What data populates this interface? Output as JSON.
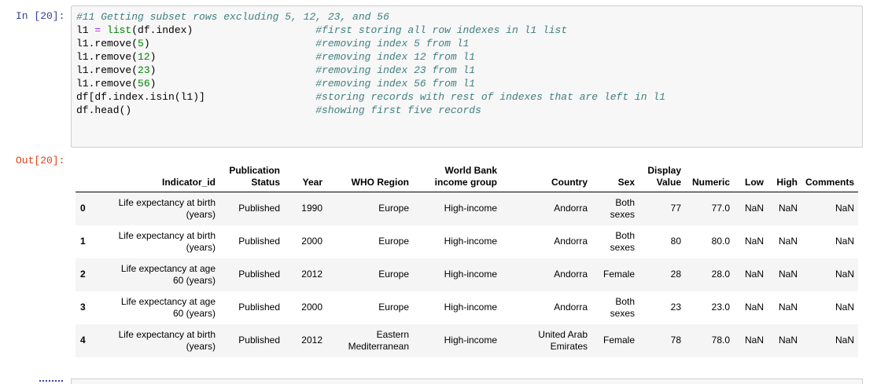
{
  "cell": {
    "in_prompt": "In [20]:",
    "out_prompt": "Out[20]:",
    "code_lines": [
      {
        "code": "#11 Getting subset rows excluding 5, 12, 23, and 56",
        "comment": ""
      },
      {
        "code": "l1 = list(df.index)",
        "comment": "#first storing all row indexes in l1 list"
      },
      {
        "code": "l1.remove(5)",
        "comment": "#removing index 5 from l1"
      },
      {
        "code": "l1.remove(12)",
        "comment": "#removing index 12 from l1"
      },
      {
        "code": "l1.remove(23)",
        "comment": "#removing index 23 from l1"
      },
      {
        "code": "l1.remove(56)",
        "comment": "#removing index 56 from l1"
      },
      {
        "code": "df[df.index.isin(l1)]",
        "comment": "#storing records with rest of indexes that are left in l1"
      },
      {
        "code": "df.head()",
        "comment": "#showing first five records"
      }
    ]
  },
  "table": {
    "columns": [
      "",
      "Indicator_id",
      "Publication Status",
      "Year",
      "WHO Region",
      "World Bank income group",
      "Country",
      "Sex",
      "Display Value",
      "Numeric",
      "Low",
      "High",
      "Comments"
    ],
    "rows": [
      [
        "0",
        "Life expectancy at birth (years)",
        "Published",
        "1990",
        "Europe",
        "High-income",
        "Andorra",
        "Both sexes",
        "77",
        "77.0",
        "NaN",
        "NaN",
        "NaN"
      ],
      [
        "1",
        "Life expectancy at birth (years)",
        "Published",
        "2000",
        "Europe",
        "High-income",
        "Andorra",
        "Both sexes",
        "80",
        "80.0",
        "NaN",
        "NaN",
        "NaN"
      ],
      [
        "2",
        "Life expectancy at age 60 (years)",
        "Published",
        "2012",
        "Europe",
        "High-income",
        "Andorra",
        "Female",
        "28",
        "28.0",
        "NaN",
        "NaN",
        "NaN"
      ],
      [
        "3",
        "Life expectancy at age 60 (years)",
        "Published",
        "2000",
        "Europe",
        "High-income",
        "Andorra",
        "Both sexes",
        "23",
        "23.0",
        "NaN",
        "NaN",
        "NaN"
      ],
      [
        "4",
        "Life expectancy at birth (years)",
        "Published",
        "2012",
        "Eastern Mediterranean",
        "High-income",
        "United Arab Emirates",
        "Female",
        "78",
        "78.0",
        "NaN",
        "NaN",
        "NaN"
      ]
    ]
  }
}
